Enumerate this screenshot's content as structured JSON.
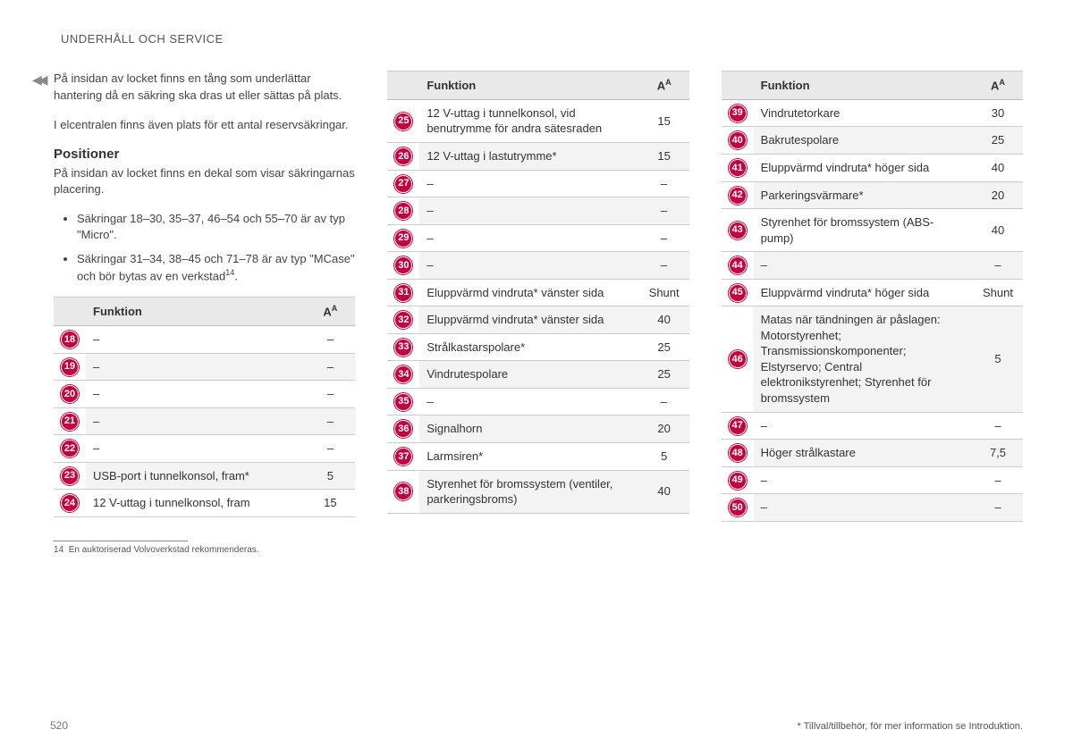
{
  "header": "UNDERHÅLL OCH SERVICE",
  "left": {
    "para1": "På insidan av locket finns en tång som underlättar hantering då en säkring ska dras ut eller sättas på plats.",
    "para2": "I elcentralen finns även plats för ett antal reservsäkringar.",
    "h2": "Positioner",
    "para3": "På insidan av locket finns en dekal som visar säkringarnas placering.",
    "bullet1_a": "Säkringar 18–30, 35–37, 46–54 och 55–70 är av typ \"Micro\".",
    "bullet2_a": "Säkringar 31–34, 38–45 och 71–78 är av typ \"MCase\" och bör bytas av en verkstad",
    "bullet2_sup": "14",
    "bullet2_b": "."
  },
  "tableHeaders": {
    "func": "Funktion",
    "amp": "A",
    "ampSup": "A"
  },
  "table1": [
    {
      "n": "18",
      "f": "–",
      "a": "–"
    },
    {
      "n": "19",
      "f": "–",
      "a": "–"
    },
    {
      "n": "20",
      "f": "–",
      "a": "–"
    },
    {
      "n": "21",
      "f": "–",
      "a": "–"
    },
    {
      "n": "22",
      "f": "–",
      "a": "–"
    },
    {
      "n": "23",
      "f": "USB-port i tunnelkonsol, fram*",
      "a": "5"
    },
    {
      "n": "24",
      "f": "12 V-uttag i tunnelkonsol, fram",
      "a": "15"
    }
  ],
  "table2": [
    {
      "n": "25",
      "f": "12 V-uttag i tunnelkonsol, vid benutrymme för andra sätesraden",
      "a": "15"
    },
    {
      "n": "26",
      "f": "12 V-uttag i lastutrymme*",
      "a": "15"
    },
    {
      "n": "27",
      "f": "–",
      "a": "–"
    },
    {
      "n": "28",
      "f": "–",
      "a": "–"
    },
    {
      "n": "29",
      "f": "–",
      "a": "–"
    },
    {
      "n": "30",
      "f": "–",
      "a": "–"
    },
    {
      "n": "31",
      "f": "Eluppvärmd vindruta* vänster sida",
      "a": "Shunt"
    },
    {
      "n": "32",
      "f": "Eluppvärmd vindruta* vänster sida",
      "a": "40"
    },
    {
      "n": "33",
      "f": "Strålkastarspolare*",
      "a": "25"
    },
    {
      "n": "34",
      "f": "Vindrutespolare",
      "a": "25"
    },
    {
      "n": "35",
      "f": "–",
      "a": "–"
    },
    {
      "n": "36",
      "f": "Signalhorn",
      "a": "20"
    },
    {
      "n": "37",
      "f": "Larmsiren*",
      "a": "5"
    },
    {
      "n": "38",
      "f": "Styrenhet för bromssystem (ventiler, parkeringsbroms)",
      "a": "40"
    }
  ],
  "table3": [
    {
      "n": "39",
      "f": "Vindrutetorkare",
      "a": "30"
    },
    {
      "n": "40",
      "f": "Bakrutespolare",
      "a": "25"
    },
    {
      "n": "41",
      "f": "Eluppvärmd vindruta* höger sida",
      "a": "40"
    },
    {
      "n": "42",
      "f": "Parkeringsvärmare*",
      "a": "20"
    },
    {
      "n": "43",
      "f": "Styrenhet för bromssystem (ABS-pump)",
      "a": "40"
    },
    {
      "n": "44",
      "f": "–",
      "a": "–"
    },
    {
      "n": "45",
      "f": "Eluppvärmd vindruta* höger sida",
      "a": "Shunt"
    },
    {
      "n": "46",
      "f": "Matas när tändningen är påslagen: Motorstyrenhet; Transmissionskomponenter; Elstyrservo; Central elektronikstyrenhet; Styrenhet för bromssystem",
      "a": "5"
    },
    {
      "n": "47",
      "f": "–",
      "a": "–"
    },
    {
      "n": "48",
      "f": "Höger strålkastare",
      "a": "7,5"
    },
    {
      "n": "49",
      "f": "–",
      "a": "–"
    },
    {
      "n": "50",
      "f": "–",
      "a": "–"
    }
  ],
  "footnote_num": "14",
  "footnote_text": "En auktoriserad Volvoverkstad rekommenderas.",
  "pageNum": "520",
  "pageNote": "* Tillval/tillbehör, för mer information se Introduktion.",
  "colors": {
    "badge_bg": "#c3003e",
    "row_alt": "#f3f3f3",
    "header_bg": "#e9e9e9"
  }
}
